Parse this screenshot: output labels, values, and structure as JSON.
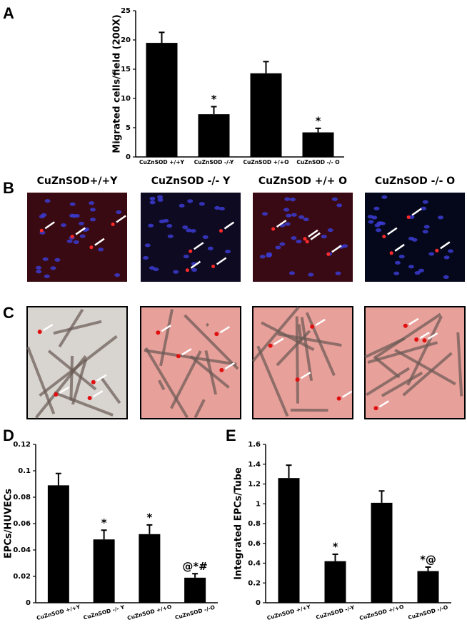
{
  "panel_labels": [
    "A",
    "B",
    "C",
    "D",
    "E"
  ],
  "image_columns": [
    "CuZnSOD+/+Y",
    "CuZnSOD -/- Y",
    "CuZnSOD +/+ O",
    "CuZnSOD -/- O"
  ],
  "chart_data": [
    {
      "type": "bar",
      "y_label": "Migrated cells/field (200X)",
      "categories": [
        "CuZnSOD +/+Y",
        "CuZnSOD -/-Y",
        "CuZnSOD +/+O",
        "CuZnSOD -/- O"
      ],
      "values": [
        19.5,
        7.3,
        14.3,
        4.2
      ],
      "errors": [
        1.8,
        1.3,
        2.0,
        0.7
      ],
      "annotations": [
        null,
        "*",
        null,
        "*"
      ],
      "color": "#000000",
      "ylim": [
        0,
        25
      ],
      "yticks": [
        0,
        5,
        10,
        15,
        20,
        25
      ]
    },
    {
      "type": "bar",
      "y_label": "EPCs/HUVECs",
      "categories": [
        "CuZnSOD +/+Y",
        "CuZnSOD -/- Y",
        "CuZnSOD +/+O",
        "CuZnSOD -/-O"
      ],
      "values": [
        0.089,
        0.048,
        0.052,
        0.019
      ],
      "errors": [
        0.009,
        0.007,
        0.007,
        0.003
      ],
      "annotations": [
        null,
        "*",
        "*",
        "@*#"
      ],
      "color": "#000000",
      "ylim": [
        0,
        0.12
      ],
      "yticks": [
        0,
        0.02,
        0.04,
        0.06,
        0.08,
        0.1,
        0.12
      ]
    },
    {
      "type": "bar",
      "y_label": "Integrated EPCs/Tube",
      "categories": [
        "CuZnSOD +/+Y",
        "CuZnSOD -/-Y",
        "CuZnSOD +/+O",
        "CuZnSOD -/-O"
      ],
      "values": [
        1.26,
        0.42,
        1.01,
        0.32
      ],
      "errors": [
        0.13,
        0.07,
        0.12,
        0.04
      ],
      "annotations": [
        null,
        "*",
        null,
        "*@"
      ],
      "color": "#000000",
      "ylim": [
        0,
        1.6
      ],
      "yticks": [
        0,
        0.2,
        0.4,
        0.6,
        0.8,
        1,
        1.2,
        1.4,
        1.6
      ]
    }
  ]
}
